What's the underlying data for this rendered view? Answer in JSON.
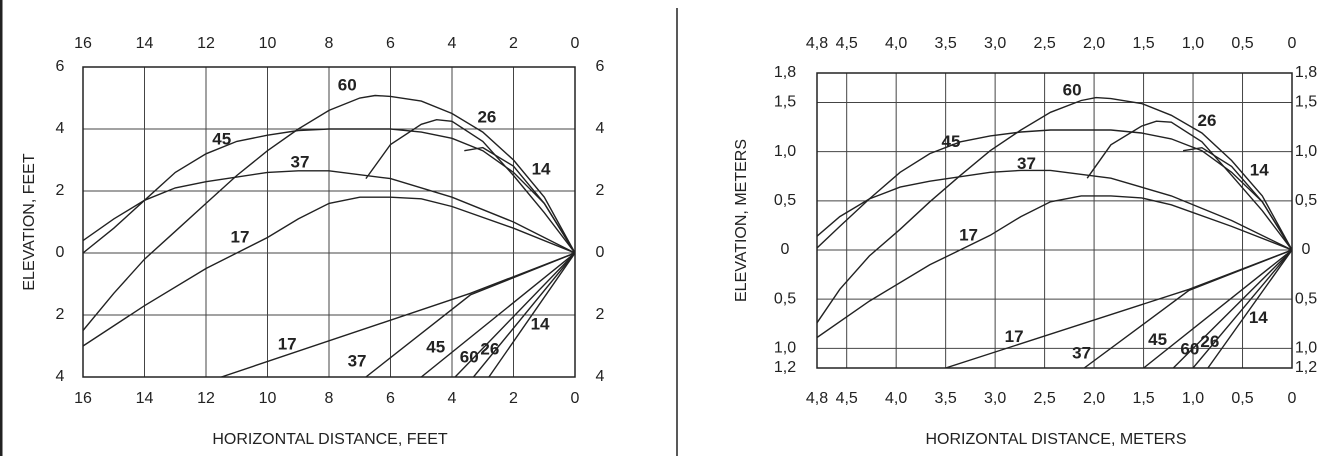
{
  "chart_data": [
    {
      "type": "line",
      "xlabel": "HORIZONTAL DISTANCE, FEET",
      "ylabel": "ELEVATION, FEET",
      "color": "#222222",
      "grid": true,
      "xlim": [
        16,
        0
      ],
      "ylim": [
        -4,
        6
      ],
      "xticks": [
        16,
        14,
        12,
        10,
        8,
        6,
        4,
        2,
        0
      ],
      "yticks": [
        6,
        4,
        2,
        0,
        {
          "value": -2,
          "label": "2"
        },
        {
          "value": -4,
          "label": "4"
        }
      ],
      "series": [
        {
          "name": "60",
          "x": [
            0,
            1,
            2,
            3,
            4,
            5,
            6,
            6.5,
            7,
            8,
            9,
            10,
            11,
            12,
            13,
            14,
            15,
            16
          ],
          "values": [
            0,
            1.8,
            3.0,
            3.9,
            4.5,
            4.9,
            5.05,
            5.08,
            5.0,
            4.6,
            4.0,
            3.3,
            2.5,
            1.6,
            0.7,
            -0.2,
            -1.3,
            -2.5
          ]
        },
        {
          "name": "45",
          "x": [
            0,
            1,
            2,
            3,
            4,
            5,
            6,
            7,
            8,
            9,
            10,
            11,
            12,
            13,
            14,
            15,
            16
          ],
          "values": [
            0,
            1.6,
            2.6,
            3.3,
            3.7,
            3.9,
            4.0,
            4.0,
            4.0,
            3.95,
            3.8,
            3.6,
            3.2,
            2.6,
            1.7,
            0.8,
            0
          ]
        },
        {
          "name": "37",
          "x": [
            0,
            2,
            4,
            6,
            8,
            9,
            10,
            12,
            13,
            14,
            15,
            16
          ],
          "values": [
            0,
            1.0,
            1.8,
            2.4,
            2.65,
            2.65,
            2.6,
            2.3,
            2.1,
            1.7,
            1.1,
            0.4
          ]
        },
        {
          "name": "17",
          "x": [
            0,
            2,
            4,
            5,
            6,
            7,
            8,
            9,
            10,
            12,
            14,
            16
          ],
          "values": [
            0,
            0.8,
            1.5,
            1.75,
            1.8,
            1.8,
            1.6,
            1.1,
            0.5,
            -0.5,
            -1.7,
            -3.0
          ]
        },
        {
          "name": "26",
          "x": [
            0,
            1,
            2,
            3,
            4,
            4.5,
            5,
            6,
            6.8
          ],
          "values": [
            0,
            1.3,
            2.5,
            3.6,
            4.25,
            4.3,
            4.15,
            3.5,
            2.4
          ]
        },
        {
          "name": "14",
          "x": [
            0,
            1,
            2,
            3,
            3.6
          ],
          "values": [
            0,
            1.6,
            2.8,
            3.4,
            3.3
          ]
        },
        {
          "name": "17",
          "x": [
            0,
            3.4,
            11.5
          ],
          "values": [
            0,
            -1.3,
            -4
          ]
        },
        {
          "name": "37",
          "x": [
            0,
            3.4,
            6.8
          ],
          "values": [
            0,
            -1.35,
            -4
          ]
        },
        {
          "name": "45",
          "x": [
            0,
            5
          ],
          "values": [
            0,
            -4
          ]
        },
        {
          "name": "60",
          "x": [
            0,
            3.9
          ],
          "values": [
            0,
            -4
          ]
        },
        {
          "name": "26",
          "x": [
            0,
            3.3
          ],
          "values": [
            0,
            -4
          ]
        },
        {
          "name": "14",
          "x": [
            0,
            2.8
          ],
          "values": [
            0,
            -4
          ]
        }
      ]
    },
    {
      "type": "line",
      "xlabel": "HORIZONTAL DISTANCE, METERS",
      "ylabel": "ELEVATION, METERS",
      "color": "#222222",
      "grid": true,
      "xlim": [
        4.8,
        0
      ],
      "ylim": [
        -1.2,
        1.8
      ],
      "xticks": [
        {
          "value": 4.8,
          "label": "4,8"
        },
        {
          "value": 4.5,
          "label": "4,5"
        },
        {
          "value": 4.0,
          "label": "4,0"
        },
        {
          "value": 3.5,
          "label": "3,5"
        },
        {
          "value": 3.0,
          "label": "3,0"
        },
        {
          "value": 2.5,
          "label": "2,5"
        },
        {
          "value": 2.0,
          "label": "2,0"
        },
        {
          "value": 1.5,
          "label": "1,5"
        },
        {
          "value": 1.0,
          "label": "1,0"
        },
        {
          "value": 0.5,
          "label": "0,5"
        },
        0
      ],
      "yticks": [
        {
          "value": 1.8,
          "label": "1,8"
        },
        {
          "value": 1.5,
          "label": "1,5"
        },
        {
          "value": 1.0,
          "label": "1,0"
        },
        {
          "value": 0.5,
          "label": "0,5"
        },
        0,
        {
          "value": -0.5,
          "label": "0,5"
        },
        {
          "value": -1.0,
          "label": "1,0"
        },
        {
          "value": -1.2,
          "label": "1,2"
        }
      ],
      "series": [
        {
          "name": "60",
          "x": [
            0,
            0.3,
            0.61,
            0.91,
            1.22,
            1.52,
            1.83,
            1.98,
            2.13,
            2.44,
            2.74,
            3.05,
            3.35,
            3.66,
            3.96,
            4.27,
            4.57,
            4.8
          ],
          "values": [
            0,
            0.55,
            0.91,
            1.19,
            1.37,
            1.49,
            1.54,
            1.55,
            1.52,
            1.4,
            1.22,
            1.01,
            0.76,
            0.49,
            0.21,
            -0.06,
            -0.4,
            -0.74
          ]
        },
        {
          "name": "45",
          "x": [
            0,
            0.3,
            0.61,
            0.91,
            1.22,
            1.52,
            1.83,
            2.13,
            2.44,
            2.74,
            3.05,
            3.35,
            3.66,
            3.96,
            4.27,
            4.57,
            4.8
          ],
          "values": [
            0,
            0.49,
            0.79,
            1.01,
            1.13,
            1.19,
            1.22,
            1.22,
            1.22,
            1.2,
            1.16,
            1.1,
            0.98,
            0.79,
            0.52,
            0.24,
            0.02
          ]
        },
        {
          "name": "37",
          "x": [
            0,
            0.61,
            1.22,
            1.83,
            2.44,
            2.74,
            3.05,
            3.66,
            3.96,
            4.27,
            4.57,
            4.8
          ],
          "values": [
            0,
            0.3,
            0.55,
            0.73,
            0.81,
            0.81,
            0.79,
            0.7,
            0.64,
            0.52,
            0.34,
            0.14
          ]
        },
        {
          "name": "17",
          "x": [
            0,
            0.61,
            1.22,
            1.52,
            1.83,
            2.13,
            2.44,
            2.74,
            3.05,
            3.66,
            4.27,
            4.8
          ],
          "values": [
            0,
            0.24,
            0.46,
            0.53,
            0.55,
            0.55,
            0.49,
            0.34,
            0.15,
            -0.15,
            -0.52,
            -0.89
          ]
        },
        {
          "name": "26",
          "x": [
            0,
            0.3,
            0.61,
            0.91,
            1.22,
            1.37,
            1.52,
            1.83,
            2.07
          ],
          "values": [
            0,
            0.4,
            0.76,
            1.1,
            1.3,
            1.31,
            1.26,
            1.07,
            0.73
          ]
        },
        {
          "name": "14",
          "x": [
            0,
            0.3,
            0.61,
            0.91,
            1.1
          ],
          "values": [
            0,
            0.49,
            0.85,
            1.04,
            1.01
          ]
        },
        {
          "name": "17",
          "x": [
            0,
            1.04,
            3.5
          ],
          "values": [
            0,
            -0.4,
            -1.2
          ]
        },
        {
          "name": "37",
          "x": [
            0,
            1.04,
            2.1
          ],
          "values": [
            0,
            -0.41,
            -1.2
          ]
        },
        {
          "name": "45",
          "x": [
            0,
            1.5
          ],
          "values": [
            0,
            -1.2
          ]
        },
        {
          "name": "60",
          "x": [
            0,
            1.2
          ],
          "values": [
            0,
            -1.2
          ]
        },
        {
          "name": "26",
          "x": [
            0,
            1.0
          ],
          "values": [
            0,
            -1.2
          ]
        },
        {
          "name": "14",
          "x": [
            0,
            0.85
          ],
          "values": [
            0,
            -1.2
          ]
        }
      ]
    }
  ]
}
